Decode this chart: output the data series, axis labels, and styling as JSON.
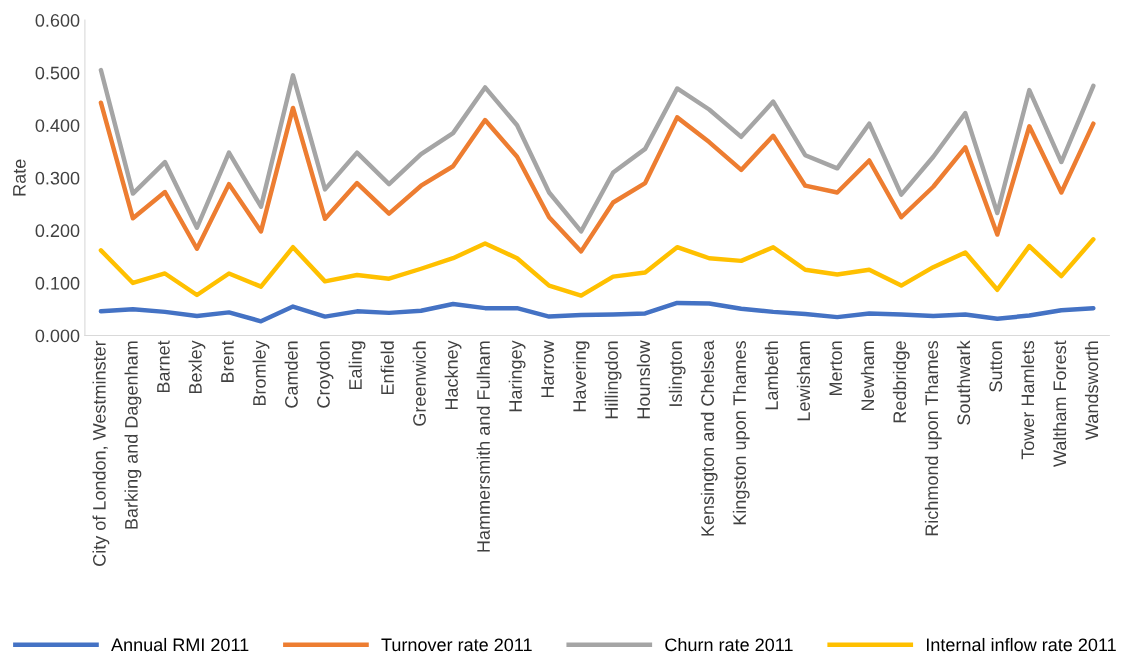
{
  "chart_data": {
    "type": "line",
    "ylabel": "Rate",
    "categories": [
      "City of London, Westminster",
      "Barking and Dagenham",
      "Barnet",
      "Bexley",
      "Brent",
      "Bromley",
      "Camden",
      "Croydon",
      "Ealing",
      "Enfield",
      "Greenwich",
      "Hackney",
      "Hammersmith and Fulham",
      "Haringey",
      "Harrow",
      "Havering",
      "Hillingdon",
      "Hounslow",
      "Islington",
      "Kensington and Chelsea",
      "Kingston upon Thames",
      "Lambeth",
      "Lewisham",
      "Merton",
      "Newham",
      "Redbridge",
      "Richmond upon Thames",
      "Southwark",
      "Sutton",
      "Tower Hamlets",
      "Waltham Forest",
      "Wandsworth"
    ],
    "ylim": [
      0,
      0.6
    ],
    "yticks": [
      {
        "value": 0,
        "label": "0.000"
      },
      {
        "value": 0.1,
        "label": "0.100"
      },
      {
        "value": 0.2,
        "label": "0.200"
      },
      {
        "value": 0.3,
        "label": "0.300"
      },
      {
        "value": 0.4,
        "label": "0.400"
      },
      {
        "value": 0.5,
        "label": "0.500"
      },
      {
        "value": 0.6,
        "label": "0.600"
      }
    ],
    "legend": "bottom",
    "marker": "none",
    "line_style": "solid",
    "series": [
      {
        "name": "Annual RMI 2011",
        "color": "#4472c4",
        "values": [
          0.046,
          0.05,
          0.045,
          0.037,
          0.044,
          0.027,
          0.055,
          0.036,
          0.046,
          0.043,
          0.047,
          0.06,
          0.052,
          0.052,
          0.036,
          0.039,
          0.04,
          0.042,
          0.062,
          0.061,
          0.051,
          0.045,
          0.041,
          0.035,
          0.042,
          0.04,
          0.037,
          0.04,
          0.032,
          0.038,
          0.048,
          0.052
        ]
      },
      {
        "name": "Turnover rate 2011",
        "color": "#ed7d31",
        "values": [
          0.443,
          0.223,
          0.273,
          0.165,
          0.288,
          0.198,
          0.433,
          0.222,
          0.29,
          0.232,
          0.285,
          0.322,
          0.41,
          0.34,
          0.225,
          0.16,
          0.253,
          0.29,
          0.415,
          0.368,
          0.315,
          0.38,
          0.285,
          0.272,
          0.333,
          0.225,
          0.283,
          0.358,
          0.192,
          0.398,
          0.272,
          0.403
        ]
      },
      {
        "name": "Churn rate 2011",
        "color": "#a5a5a5",
        "values": [
          0.505,
          0.27,
          0.33,
          0.205,
          0.348,
          0.245,
          0.495,
          0.278,
          0.348,
          0.288,
          0.345,
          0.385,
          0.472,
          0.4,
          0.272,
          0.198,
          0.31,
          0.355,
          0.47,
          0.43,
          0.378,
          0.445,
          0.343,
          0.318,
          0.403,
          0.268,
          0.34,
          0.423,
          0.233,
          0.467,
          0.33,
          0.475
        ]
      },
      {
        "name": "Internal inflow rate 2011",
        "color": "#ffc000",
        "values": [
          0.162,
          0.1,
          0.118,
          0.077,
          0.118,
          0.093,
          0.168,
          0.103,
          0.115,
          0.108,
          0.127,
          0.147,
          0.175,
          0.147,
          0.095,
          0.076,
          0.112,
          0.12,
          0.168,
          0.147,
          0.142,
          0.168,
          0.125,
          0.116,
          0.125,
          0.095,
          0.13,
          0.158,
          0.087,
          0.17,
          0.113,
          0.183
        ]
      }
    ]
  }
}
